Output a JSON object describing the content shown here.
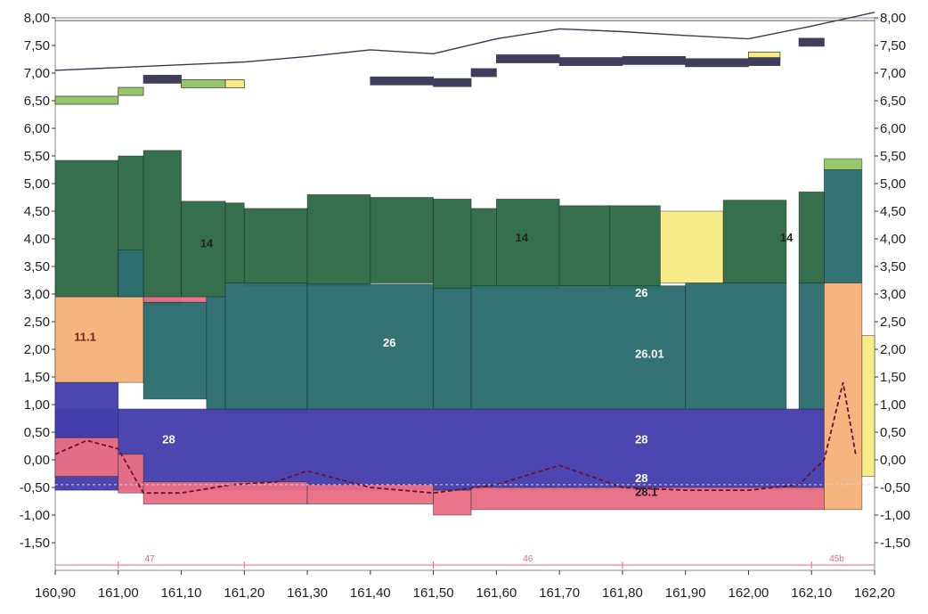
{
  "chart_data": {
    "type": "area",
    "title": "",
    "xlabel": "",
    "ylabel": "",
    "xlim": [
      160.9,
      162.2
    ],
    "ylim": [
      -2.0,
      8.0
    ],
    "grid": false,
    "x_ticks": [
      "160,90",
      "161,00",
      "161,10",
      "161,20",
      "161,30",
      "161,40",
      "161,50",
      "161,60",
      "161,70",
      "161,80",
      "161,90",
      "162,00",
      "162,10",
      "162,20"
    ],
    "y_ticks": [
      "8,00",
      "7,50",
      "7,00",
      "6,50",
      "6,00",
      "5,50",
      "5,00",
      "4,50",
      "4,00",
      "3,50",
      "3,00",
      "2,50",
      "2,00",
      "1,50",
      "1,00",
      "0,50",
      "0,00",
      "-0,50",
      "-1,00",
      "-1,50"
    ],
    "colors": {
      "unit14": "#2e6a45",
      "unit26": "#2b6e70",
      "unit28": "#463fae",
      "unit28_1": "#ea6f86",
      "unit11_1": "#f6b27a",
      "yellow": "#f7ec84",
      "green_small": "#93c767",
      "dark_bar": "#3f3e5e",
      "reference_line": "#e46a7c"
    },
    "top_line": {
      "x": [
        160.9,
        161.1,
        161.2,
        161.3,
        161.4,
        161.5,
        161.6,
        161.7,
        161.8,
        161.9,
        162.0,
        162.1,
        162.2
      ],
      "y": [
        7.05,
        7.15,
        7.2,
        7.3,
        7.42,
        7.35,
        7.62,
        7.8,
        7.75,
        7.68,
        7.62,
        7.85,
        8.1
      ]
    },
    "top_markers": [
      {
        "x0": 160.9,
        "x1": 161.0,
        "y": 6.5,
        "color": "green_small"
      },
      {
        "x0": 161.0,
        "x1": 161.04,
        "y": 6.66,
        "color": "green_small"
      },
      {
        "x0": 161.04,
        "x1": 161.1,
        "y": 6.88,
        "color": "dark_bar"
      },
      {
        "x0": 161.1,
        "x1": 161.17,
        "y": 6.8,
        "color": "green_small"
      },
      {
        "x0": 161.17,
        "x1": 161.2,
        "y": 6.8,
        "color": "yellow"
      },
      {
        "x0": 161.4,
        "x1": 161.5,
        "y": 6.85,
        "color": "dark_bar"
      },
      {
        "x0": 161.5,
        "x1": 161.56,
        "y": 6.82,
        "color": "dark_bar"
      },
      {
        "x0": 161.56,
        "x1": 161.6,
        "y": 7.0,
        "color": "dark_bar"
      },
      {
        "x0": 161.6,
        "x1": 161.7,
        "y": 7.25,
        "color": "dark_bar"
      },
      {
        "x0": 161.7,
        "x1": 161.8,
        "y": 7.2,
        "color": "dark_bar"
      },
      {
        "x0": 161.8,
        "x1": 161.9,
        "y": 7.22,
        "color": "dark_bar"
      },
      {
        "x0": 161.9,
        "x1": 162.0,
        "y": 7.18,
        "color": "dark_bar"
      },
      {
        "x0": 162.0,
        "x1": 162.05,
        "y": 7.3,
        "color": "yellow"
      },
      {
        "x0": 162.0,
        "x1": 162.05,
        "y": 7.2,
        "color": "dark_bar"
      },
      {
        "x0": 162.08,
        "x1": 162.12,
        "y": 7.55,
        "color": "dark_bar"
      }
    ],
    "blocks": [
      {
        "unit": "unit14",
        "x0": 160.9,
        "x1": 161.0,
        "y0": 2.95,
        "y1": 5.42
      },
      {
        "unit": "unit14",
        "x0": 161.0,
        "x1": 161.04,
        "y0": 2.95,
        "y1": 5.5
      },
      {
        "unit": "unit14",
        "x0": 161.04,
        "x1": 161.1,
        "y0": 2.8,
        "y1": 5.6
      },
      {
        "unit": "unit14",
        "x0": 161.1,
        "x1": 161.17,
        "y0": 2.95,
        "y1": 4.68
      },
      {
        "unit": "unit14",
        "x0": 161.17,
        "x1": 161.2,
        "y0": 3.2,
        "y1": 4.65
      },
      {
        "unit": "unit14",
        "x0": 161.2,
        "x1": 161.3,
        "y0": 3.15,
        "y1": 4.55
      },
      {
        "unit": "unit14",
        "x0": 161.3,
        "x1": 161.4,
        "y0": 3.15,
        "y1": 4.8
      },
      {
        "unit": "unit14",
        "x0": 161.4,
        "x1": 161.5,
        "y0": 3.2,
        "y1": 4.75
      },
      {
        "unit": "unit14",
        "x0": 161.5,
        "x1": 161.56,
        "y0": 3.1,
        "y1": 4.72
      },
      {
        "unit": "unit14",
        "x0": 161.56,
        "x1": 161.6,
        "y0": 3.1,
        "y1": 4.55
      },
      {
        "unit": "unit14",
        "x0": 161.6,
        "x1": 161.7,
        "y0": 3.1,
        "y1": 4.72
      },
      {
        "unit": "unit14",
        "x0": 161.7,
        "x1": 161.78,
        "y0": 3.15,
        "y1": 4.6
      },
      {
        "unit": "unit14",
        "x0": 161.78,
        "x1": 161.86,
        "y0": 3.1,
        "y1": 4.6
      },
      {
        "unit": "yellow",
        "x0": 161.86,
        "x1": 161.96,
        "y0": 3.2,
        "y1": 4.5
      },
      {
        "unit": "unit14",
        "x0": 161.96,
        "x1": 162.06,
        "y0": 3.2,
        "y1": 4.7
      },
      {
        "unit": "unit14",
        "x0": 162.08,
        "x1": 162.12,
        "y0": 3.2,
        "y1": 4.85
      },
      {
        "unit": "unit26",
        "x0": 162.12,
        "x1": 162.18,
        "y0": 3.2,
        "y1": 5.25
      },
      {
        "unit": "green_small",
        "x0": 162.12,
        "x1": 162.18,
        "y0": 5.25,
        "y1": 5.45
      },
      {
        "unit": "unit11_1",
        "x0": 160.9,
        "x1": 161.04,
        "y0": 1.4,
        "y1": 2.95
      },
      {
        "unit": "unit26",
        "x0": 161.0,
        "x1": 161.04,
        "y0": 2.95,
        "y1": 3.8
      },
      {
        "unit": "unit28_1",
        "x0": 161.04,
        "x1": 161.14,
        "y0": 2.85,
        "y1": 2.95
      },
      {
        "unit": "unit26",
        "x0": 161.04,
        "x1": 161.14,
        "y0": 1.1,
        "y1": 2.85
      },
      {
        "unit": "unit26",
        "x0": 161.14,
        "x1": 161.17,
        "y0": 0.9,
        "y1": 2.95
      },
      {
        "unit": "unit26",
        "x0": 161.17,
        "x1": 161.3,
        "y0": 0.85,
        "y1": 3.2
      },
      {
        "unit": "unit26",
        "x0": 161.3,
        "x1": 161.5,
        "y0": 0.9,
        "y1": 3.18
      },
      {
        "unit": "unit26",
        "x0": 161.5,
        "x1": 161.56,
        "y0": 0.9,
        "y1": 3.1
      },
      {
        "unit": "unit26",
        "x0": 161.56,
        "x1": 161.9,
        "y0": 0.9,
        "y1": 3.15
      },
      {
        "unit": "unit26",
        "x0": 161.9,
        "x1": 162.06,
        "y0": 0.9,
        "y1": 3.2
      },
      {
        "unit": "unit26",
        "x0": 162.08,
        "x1": 162.12,
        "y0": 0.9,
        "y1": 3.2
      },
      {
        "unit": "unit28",
        "x0": 160.9,
        "x1": 162.12,
        "y0": -0.55,
        "y1": 0.92
      },
      {
        "unit": "unit28",
        "x0": 160.9,
        "x1": 161.0,
        "y0": 0.4,
        "y1": 1.4
      },
      {
        "unit": "unit28_1",
        "x0": 160.9,
        "x1": 161.0,
        "y0": -0.3,
        "y1": 0.4
      },
      {
        "unit": "unit28_1",
        "x0": 161.0,
        "x1": 161.04,
        "y0": -0.6,
        "y1": 0.1
      },
      {
        "unit": "unit28_1",
        "x0": 161.04,
        "x1": 161.3,
        "y0": -0.8,
        "y1": -0.4
      },
      {
        "unit": "unit28_1",
        "x0": 161.3,
        "x1": 161.5,
        "y0": -0.8,
        "y1": -0.45
      },
      {
        "unit": "unit28_1",
        "x0": 161.5,
        "x1": 161.56,
        "y0": -1.0,
        "y1": -0.55
      },
      {
        "unit": "unit28_1",
        "x0": 161.56,
        "x1": 162.12,
        "y0": -0.9,
        "y1": -0.5
      },
      {
        "unit": "unit11_1",
        "x0": 162.12,
        "x1": 162.18,
        "y0": -0.9,
        "y1": 3.2
      },
      {
        "unit": "yellow",
        "x0": 162.18,
        "x1": 162.2,
        "y0": -0.3,
        "y1": 2.25
      }
    ],
    "labels": [
      {
        "text": "11.1",
        "x": 160.93,
        "y": 2.15,
        "color": "#7a2020"
      },
      {
        "text": "14",
        "x": 161.13,
        "y": 3.85,
        "color": "#222"
      },
      {
        "text": "14",
        "x": 161.63,
        "y": 3.95,
        "color": "#222"
      },
      {
        "text": "14",
        "x": 162.05,
        "y": 3.95,
        "color": "#222"
      },
      {
        "text": "26",
        "x": 161.42,
        "y": 2.05,
        "color": "#ffffff"
      },
      {
        "text": "26",
        "x": 161.82,
        "y": 2.95,
        "color": "#ffffff"
      },
      {
        "text": "26.01",
        "x": 161.82,
        "y": 1.85,
        "color": "#ffffff"
      },
      {
        "text": "28",
        "x": 161.07,
        "y": 0.3,
        "color": "#ffffff"
      },
      {
        "text": "28",
        "x": 161.82,
        "y": 0.3,
        "color": "#ffffff"
      },
      {
        "text": "28",
        "x": 161.82,
        "y": -0.4,
        "color": "#ffffff"
      },
      {
        "text": "28.1",
        "x": 161.82,
        "y": -0.65,
        "color": "#222"
      }
    ],
    "dashed_line": {
      "x": [
        160.9,
        160.95,
        161.0,
        161.04,
        161.1,
        161.18,
        161.25,
        161.3,
        161.4,
        161.5,
        161.6,
        161.7,
        161.8,
        161.9,
        162.0,
        162.08,
        162.12,
        162.15,
        162.17
      ],
      "y": [
        0.1,
        0.35,
        0.2,
        -0.6,
        -0.6,
        -0.45,
        -0.4,
        -0.2,
        -0.5,
        -0.6,
        -0.45,
        -0.1,
        -0.5,
        -0.55,
        -0.55,
        -0.45,
        0.0,
        1.4,
        0.1
      ]
    },
    "reference_labels": [
      {
        "text": "47",
        "x": 161.05
      },
      {
        "text": "46",
        "x": 161.65
      },
      {
        "text": "45b",
        "x": 162.14
      }
    ]
  }
}
